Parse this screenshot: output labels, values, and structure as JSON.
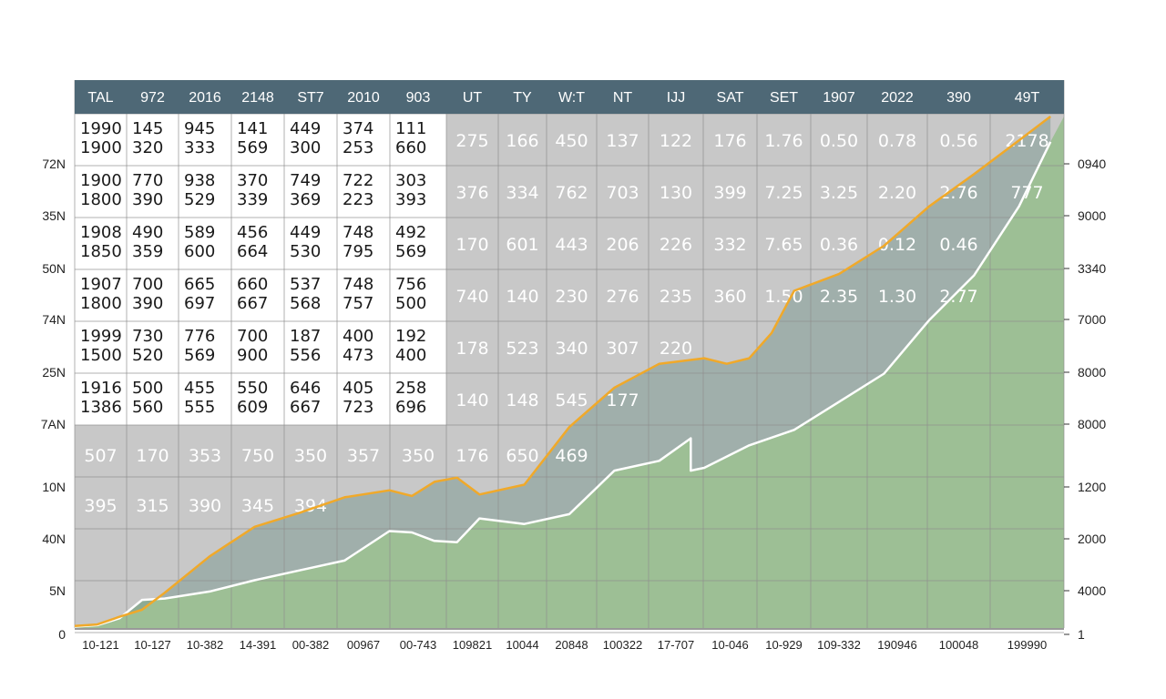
{
  "chart_data": {
    "type": "area",
    "colors": {
      "header": "#4e6876",
      "area_fill": "#9dbf95",
      "gray_fill": "#c8c8c8",
      "grid": "#8e8e8e",
      "orange_line": "#f0a92a",
      "white_line": "#ffffff",
      "header_text": "#ffffff"
    },
    "table": {
      "headers": [
        "TAL",
        "972",
        "2016",
        "2148",
        "ST7",
        "2010",
        "903",
        "UT",
        "TY",
        "W:T",
        "NT",
        "IJJ",
        "SAT",
        "SET",
        "1907",
        "2022",
        "390",
        "49T"
      ],
      "left_rows": [
        [
          [
            "1990",
            "1900"
          ],
          [
            "145",
            "320"
          ],
          [
            "945",
            "333"
          ],
          [
            "141",
            "569"
          ],
          [
            "449",
            "300"
          ],
          [
            "374",
            "253"
          ],
          [
            "111",
            "660"
          ]
        ],
        [
          [
            "1900",
            "1800"
          ],
          [
            "770",
            "390"
          ],
          [
            "938",
            "529"
          ],
          [
            "370",
            "339"
          ],
          [
            "749",
            "369"
          ],
          [
            "722",
            "223"
          ],
          [
            "303",
            "393"
          ]
        ],
        [
          [
            "1908",
            "1850"
          ],
          [
            "490",
            "359"
          ],
          [
            "589",
            "600"
          ],
          [
            "456",
            "664"
          ],
          [
            "449",
            "530"
          ],
          [
            "748",
            "795"
          ],
          [
            "492",
            "569"
          ]
        ],
        [
          [
            "1907",
            "1800"
          ],
          [
            "700",
            "390"
          ],
          [
            "665",
            "697"
          ],
          [
            "660",
            "667"
          ],
          [
            "537",
            "568"
          ],
          [
            "748",
            "757"
          ],
          [
            "756",
            "500"
          ]
        ],
        [
          [
            "1999",
            "1500"
          ],
          [
            "730",
            "520"
          ],
          [
            "776",
            "569"
          ],
          [
            "700",
            "900"
          ],
          [
            "187",
            "556"
          ],
          [
            "400",
            "473"
          ],
          [
            "192",
            "400"
          ]
        ],
        [
          [
            "1916",
            "1386"
          ],
          [
            "500",
            "560"
          ],
          [
            "455",
            "555"
          ],
          [
            "550",
            "609"
          ],
          [
            "646",
            "667"
          ],
          [
            "405",
            "723"
          ],
          [
            "258",
            "696"
          ]
        ]
      ],
      "right_rows": [
        [
          "275",
          "166",
          "450",
          "137",
          "122",
          "176",
          "1.76",
          "0.50",
          "0.78",
          "0.56",
          "2178"
        ],
        [
          "376",
          "334",
          "762",
          "703",
          "130",
          "399",
          "7.25",
          "3.25",
          "2.20",
          "2.76",
          "777"
        ],
        [
          "170",
          "601",
          "443",
          "206",
          "226",
          "332",
          "7.65",
          "0.36",
          "0.12",
          "0.46",
          ""
        ],
        [
          "740",
          "140",
          "230",
          "276",
          "235",
          "360",
          "1.50",
          "2.35",
          "1.30",
          "2.77",
          ""
        ],
        [
          "178",
          "523",
          "340",
          "307",
          "220",
          "",
          "",
          "",
          "",
          "",
          ""
        ],
        [
          "140",
          "148",
          "545",
          "177",
          "",
          "",
          "",
          "",
          "",
          "",
          ""
        ]
      ],
      "lower_rows": [
        [
          "507",
          "170",
          "353",
          "750",
          "350",
          "357",
          "350",
          "176",
          "650",
          "469"
        ],
        [
          "395",
          "315",
          "390",
          "345",
          "394"
        ]
      ]
    },
    "left_axis": [
      "72N",
      "35N",
      "50N",
      "74N",
      "25N",
      "7AN",
      "10N",
      "40N",
      "5N",
      "0"
    ],
    "right_axis": [
      "0940",
      "9000",
      "3340",
      "7000",
      "8000",
      "8000",
      "1200",
      "2000",
      "4000",
      "1"
    ],
    "x_ticks": [
      "10-121",
      "10-127",
      "10-382",
      "14-391",
      "00-382",
      "00967",
      "00-743",
      "109821",
      "10044",
      "20848",
      "100322",
      "17-707",
      "10-046",
      "10-929",
      "109-332",
      "190946",
      "100048",
      "199990"
    ],
    "orange_series": [
      [
        0,
        1.5
      ],
      [
        0.5,
        2.5
      ],
      [
        1,
        8
      ],
      [
        1.5,
        13
      ],
      [
        2,
        25
      ],
      [
        3,
        51
      ],
      [
        4,
        72
      ],
      [
        5,
        82
      ],
      [
        6,
        93
      ],
      [
        7,
        98
      ],
      [
        7.5,
        94
      ],
      [
        8,
        104
      ],
      [
        8.5,
        107
      ],
      [
        9,
        95
      ],
      [
        10,
        102
      ],
      [
        11,
        143
      ],
      [
        12,
        171
      ],
      [
        13,
        188
      ],
      [
        14,
        192
      ],
      [
        14.5,
        188
      ],
      [
        15,
        192
      ],
      [
        15.5,
        210
      ],
      [
        16,
        240
      ],
      [
        17,
        252
      ],
      [
        18,
        272
      ],
      [
        19,
        300
      ],
      [
        20,
        323
      ],
      [
        21,
        347
      ],
      [
        21.7,
        364
      ]
    ],
    "white_series": [
      [
        0,
        1
      ],
      [
        0.5,
        2
      ],
      [
        1,
        7
      ],
      [
        1.5,
        20
      ],
      [
        2,
        21
      ],
      [
        3,
        26
      ],
      [
        4,
        34
      ],
      [
        5,
        41
      ],
      [
        6,
        48
      ],
      [
        7,
        69
      ],
      [
        7.5,
        68
      ],
      [
        8,
        62
      ],
      [
        8.5,
        61
      ],
      [
        9,
        78
      ],
      [
        10,
        74
      ],
      [
        11,
        81
      ],
      [
        12,
        112
      ],
      [
        13,
        119
      ],
      [
        13.7,
        135
      ],
      [
        13.7,
        112
      ],
      [
        14,
        114
      ],
      [
        15,
        130
      ],
      [
        16,
        141
      ],
      [
        17,
        161
      ],
      [
        18,
        181
      ],
      [
        19,
        219
      ],
      [
        20,
        251
      ],
      [
        21,
        300
      ],
      [
        21.7,
        346
      ]
    ]
  }
}
